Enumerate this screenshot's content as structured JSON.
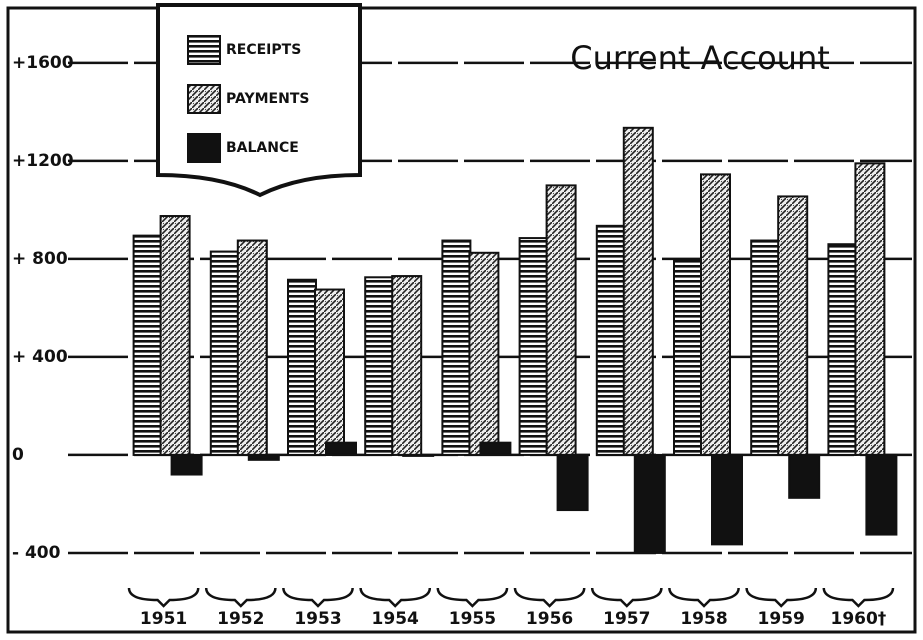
{
  "chart_data": {
    "type": "bar",
    "title": "Current Account",
    "categories": [
      "1951",
      "1952",
      "1953",
      "1954",
      "1955",
      "1956",
      "1957",
      "1958",
      "1959",
      "1960†"
    ],
    "series": [
      {
        "name": "RECEIPTS",
        "color": "#111111",
        "values": [
          895,
          830,
          715,
          725,
          875,
          885,
          935,
          795,
          875,
          860
        ]
      },
      {
        "name": "PAYMENTS",
        "color": "#111111",
        "values": [
          975,
          875,
          675,
          730,
          825,
          1100,
          1335,
          1145,
          1055,
          1190
        ]
      },
      {
        "name": "BALANCE",
        "color": "#111111",
        "values": [
          -80,
          -20,
          50,
          -4,
          50,
          -225,
          -400,
          -365,
          -175,
          -325
        ]
      }
    ],
    "ylim": [
      -490,
      1775
    ],
    "yticks": [
      {
        "value": 1600,
        "label": "+1600"
      },
      {
        "value": 1200,
        "label": "+1200"
      },
      {
        "value": 800,
        "label": "+ 800"
      },
      {
        "value": 400,
        "label": "+ 400"
      },
      0,
      {
        "value": -400,
        "label": "- 400"
      }
    ],
    "grid": true
  }
}
